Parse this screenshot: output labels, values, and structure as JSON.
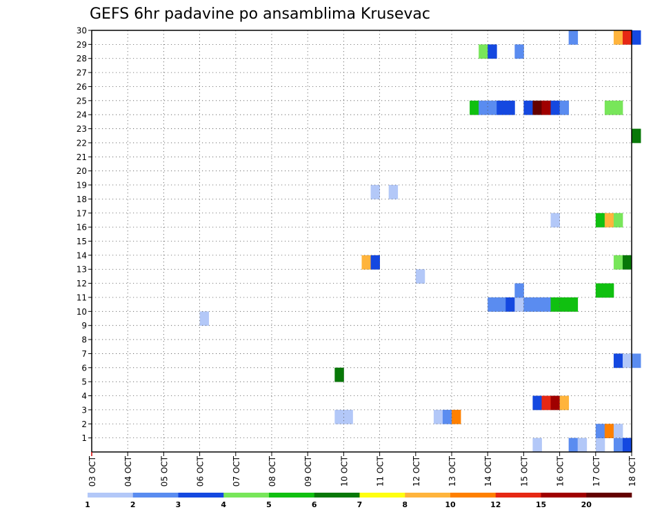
{
  "chart_data": {
    "type": "heatmap",
    "title": "GEFS 6hr padavine po ansamblima Krusevac",
    "xlabel": "",
    "ylabel": "",
    "x_tick_labels": [
      "03 OCT",
      "04 OCT",
      "05 OCT",
      "06 OCT",
      "07 OCT",
      "08 OCT",
      "09 OCT",
      "10 OCT",
      "11 OCT",
      "12 OCT",
      "13 OCT",
      "14 OCT",
      "15 OCT",
      "16 OCT",
      "17 OCT",
      "18 OCT"
    ],
    "y_tick_labels": [
      1,
      2,
      3,
      4,
      5,
      6,
      7,
      8,
      9,
      10,
      11,
      12,
      13,
      14,
      15,
      16,
      17,
      18,
      19,
      20,
      21,
      22,
      23,
      24,
      25,
      26,
      27,
      28,
      29,
      30
    ],
    "xlim_days": [
      0,
      15
    ],
    "ylim": [
      0,
      30
    ],
    "grid": true,
    "colorbar": {
      "placement": "bottom",
      "labels": [
        "1",
        "2",
        "3",
        "4",
        "5",
        "6",
        "7",
        "8",
        "10",
        "12",
        "15",
        "20"
      ],
      "colors": [
        "#b3c8f8",
        "#5a8cf0",
        "#1448e0",
        "#78e65a",
        "#10c010",
        "#087808",
        "#ffff10",
        "#ffb43c",
        "#ff8000",
        "#e62814",
        "#a00000",
        "#640000"
      ]
    },
    "cells": [
      {
        "d": 12.25,
        "m": 0,
        "l": 1
      },
      {
        "d": 13.25,
        "m": 0,
        "l": 2
      },
      {
        "d": 13.5,
        "m": 0,
        "l": 1
      },
      {
        "d": 14.0,
        "m": 0,
        "l": 1
      },
      {
        "d": 14.5,
        "m": 0,
        "l": 2
      },
      {
        "d": 14.75,
        "m": 0,
        "l": 3
      },
      {
        "d": 14.0,
        "m": 1,
        "l": 2
      },
      {
        "d": 14.25,
        "m": 1,
        "l": 9
      },
      {
        "d": 14.5,
        "m": 1,
        "l": 1
      },
      {
        "d": 6.75,
        "m": 2,
        "l": 1
      },
      {
        "d": 7.0,
        "m": 2,
        "l": 1
      },
      {
        "d": 9.5,
        "m": 2,
        "l": 1
      },
      {
        "d": 9.75,
        "m": 2,
        "l": 2
      },
      {
        "d": 10.0,
        "m": 2,
        "l": 9
      },
      {
        "d": 12.25,
        "m": 3,
        "l": 3
      },
      {
        "d": 12.5,
        "m": 3,
        "l": 10
      },
      {
        "d": 12.75,
        "m": 3,
        "l": 11
      },
      {
        "d": 13.0,
        "m": 3,
        "l": 8
      },
      {
        "d": 6.75,
        "m": 5,
        "l": 6
      },
      {
        "d": 14.5,
        "m": 6,
        "l": 3
      },
      {
        "d": 14.75,
        "m": 6,
        "l": 1
      },
      {
        "d": 15.0,
        "m": 6,
        "l": 2
      },
      {
        "d": 3.0,
        "m": 9,
        "l": 1
      },
      {
        "d": 11.0,
        "m": 10,
        "l": 2
      },
      {
        "d": 11.25,
        "m": 10,
        "l": 2
      },
      {
        "d": 11.5,
        "m": 10,
        "l": 3
      },
      {
        "d": 11.75,
        "m": 10,
        "l": 1
      },
      {
        "d": 12.0,
        "m": 10,
        "l": 2
      },
      {
        "d": 12.25,
        "m": 10,
        "l": 2
      },
      {
        "d": 12.5,
        "m": 10,
        "l": 2
      },
      {
        "d": 12.75,
        "m": 10,
        "l": 5
      },
      {
        "d": 13.0,
        "m": 10,
        "l": 5
      },
      {
        "d": 13.25,
        "m": 10,
        "l": 5
      },
      {
        "d": 11.75,
        "m": 11,
        "l": 2
      },
      {
        "d": 14.0,
        "m": 11,
        "l": 5
      },
      {
        "d": 14.25,
        "m": 11,
        "l": 5
      },
      {
        "d": 9.0,
        "m": 12,
        "l": 1
      },
      {
        "d": 7.5,
        "m": 13,
        "l": 8
      },
      {
        "d": 7.75,
        "m": 13,
        "l": 3
      },
      {
        "d": 14.5,
        "m": 13,
        "l": 4
      },
      {
        "d": 14.75,
        "m": 13,
        "l": 6
      },
      {
        "d": 12.75,
        "m": 16,
        "l": 1
      },
      {
        "d": 14.0,
        "m": 16,
        "l": 5
      },
      {
        "d": 14.25,
        "m": 16,
        "l": 8
      },
      {
        "d": 14.5,
        "m": 16,
        "l": 4
      },
      {
        "d": 7.75,
        "m": 18,
        "l": 1
      },
      {
        "d": 8.25,
        "m": 18,
        "l": 1
      },
      {
        "d": 15.0,
        "m": 22,
        "l": 6
      },
      {
        "d": 10.5,
        "m": 24,
        "l": 5
      },
      {
        "d": 10.75,
        "m": 24,
        "l": 2
      },
      {
        "d": 11.0,
        "m": 24,
        "l": 2
      },
      {
        "d": 11.25,
        "m": 24,
        "l": 3
      },
      {
        "d": 11.5,
        "m": 24,
        "l": 3
      },
      {
        "d": 12.0,
        "m": 24,
        "l": 3
      },
      {
        "d": 12.25,
        "m": 24,
        "l": 12
      },
      {
        "d": 12.5,
        "m": 24,
        "l": 11
      },
      {
        "d": 12.75,
        "m": 24,
        "l": 3
      },
      {
        "d": 13.0,
        "m": 24,
        "l": 2
      },
      {
        "d": 14.25,
        "m": 24,
        "l": 4
      },
      {
        "d": 14.5,
        "m": 24,
        "l": 4
      },
      {
        "d": 10.75,
        "m": 28,
        "l": 4
      },
      {
        "d": 11.0,
        "m": 28,
        "l": 3
      },
      {
        "d": 11.75,
        "m": 28,
        "l": 2
      },
      {
        "d": 13.25,
        "m": 29,
        "l": 2
      },
      {
        "d": 14.5,
        "m": 29,
        "l": 8
      },
      {
        "d": 14.75,
        "m": 29,
        "l": 10
      },
      {
        "d": 15.0,
        "m": 29,
        "l": 3
      }
    ]
  }
}
